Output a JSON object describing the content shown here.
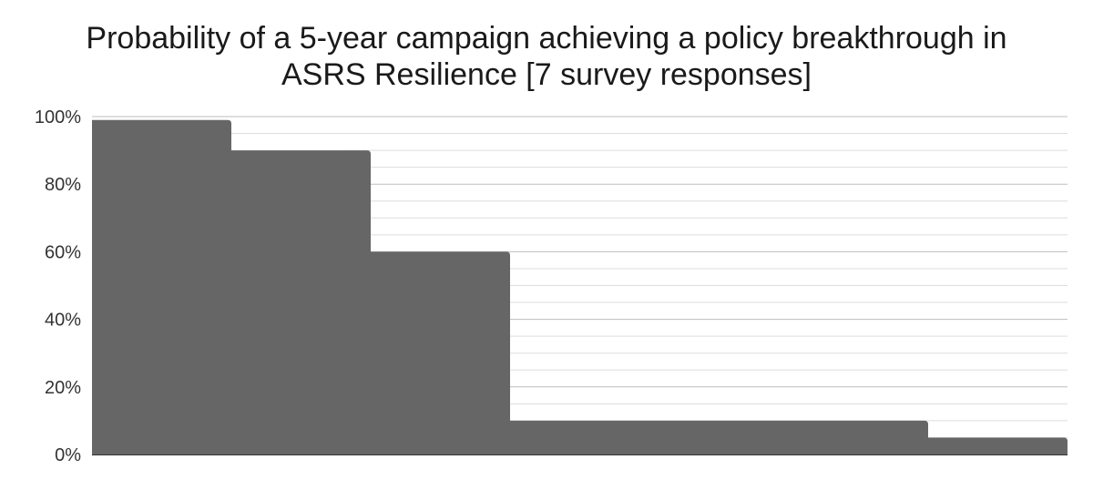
{
  "chart_data": {
    "type": "area",
    "title_lines": [
      "Probability of a 5-year campaign achieving a policy breakthrough in",
      "ASRS Resilience [7 survey responses]"
    ],
    "xlabel": "",
    "ylabel": "",
    "ylim": [
      0,
      100
    ],
    "y_tick_labels": [
      "0%",
      "20%",
      "40%",
      "60%",
      "80%",
      "100%"
    ],
    "y_ticks": [
      0,
      20,
      40,
      60,
      80,
      100
    ],
    "minor_grid_step": 5,
    "grid": true,
    "responses_sorted": [
      99,
      90,
      60,
      10,
      10,
      10,
      5
    ],
    "color": "#666666",
    "grid_color": "#cccccc",
    "axis_color": "#333333"
  }
}
